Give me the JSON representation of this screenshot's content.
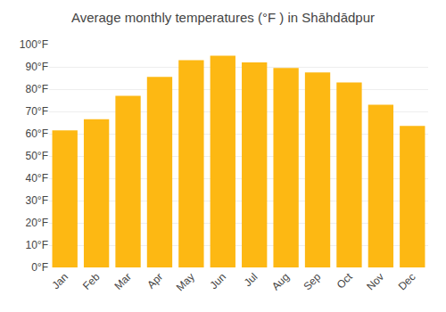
{
  "chart_data": {
    "type": "bar",
    "title": "Average monthly temperatures (°F ) in Shāhdādpur",
    "categories": [
      "Jan",
      "Feb",
      "Mar",
      "Apr",
      "May",
      "Jun",
      "Jul",
      "Aug",
      "Sep",
      "Oct",
      "Nov",
      "Dec"
    ],
    "values": [
      61.5,
      66.5,
      77.0,
      85.5,
      93.0,
      95.0,
      92.0,
      89.5,
      87.5,
      83.0,
      73.0,
      63.5
    ],
    "color": "#FDB813",
    "ylim": [
      0,
      100
    ],
    "yticks": [
      {
        "value": 0,
        "label": "0°F"
      },
      {
        "value": 10,
        "label": "10°F"
      },
      {
        "value": 20,
        "label": "20°F"
      },
      {
        "value": 30,
        "label": "30°F"
      },
      {
        "value": 40,
        "label": "40°F"
      },
      {
        "value": 50,
        "label": "50°F"
      },
      {
        "value": 60,
        "label": "60°F"
      },
      {
        "value": 70,
        "label": "70°F"
      },
      {
        "value": 80,
        "label": "80°F"
      },
      {
        "value": 90,
        "label": "90°F"
      },
      {
        "value": 100,
        "label": "100°F"
      }
    ],
    "grid": true
  }
}
